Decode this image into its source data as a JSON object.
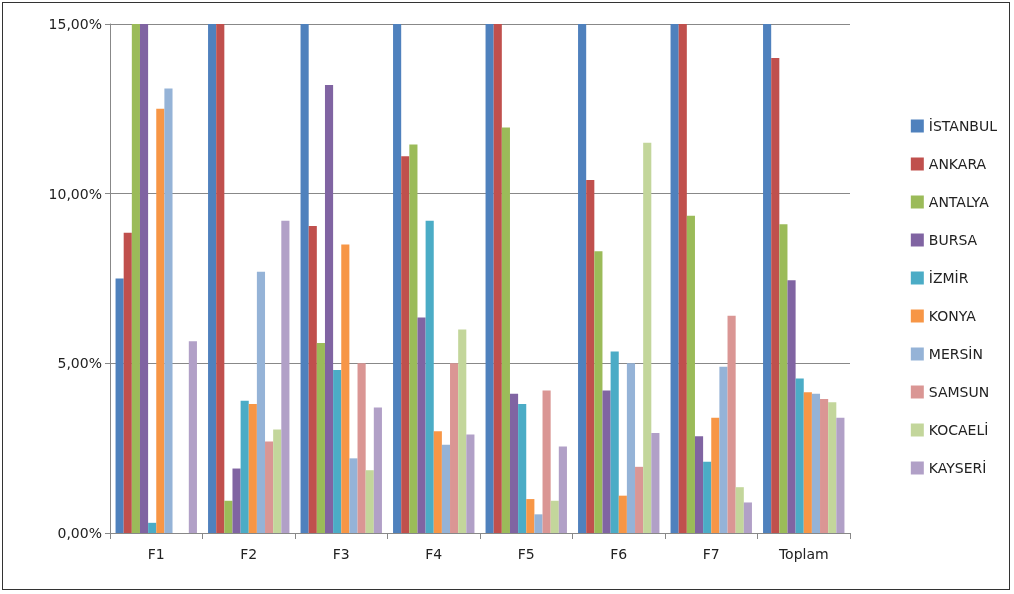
{
  "chart_data": {
    "type": "bar",
    "categories": [
      "F1",
      "F2",
      "F3",
      "F4",
      "F5",
      "F6",
      "F7",
      "Toplam"
    ],
    "series": [
      {
        "name": "İSTANBUL",
        "color": "#4f81bd",
        "values": [
          7.5,
          15,
          15,
          15,
          15,
          15,
          15,
          15
        ]
      },
      {
        "name": "ANKARA",
        "color": "#c0504d",
        "values": [
          8.85,
          15,
          9.05,
          11.1,
          15,
          10.4,
          15,
          14.0
        ]
      },
      {
        "name": "ANTALYA",
        "color": "#9bbb59",
        "values": [
          15,
          0.95,
          5.6,
          11.45,
          11.95,
          8.3,
          9.35,
          9.1
        ]
      },
      {
        "name": "BURSA",
        "color": "#8064a2",
        "values": [
          15,
          1.9,
          13.2,
          6.35,
          4.1,
          4.2,
          2.85,
          7.45
        ]
      },
      {
        "name": "İZMİR",
        "color": "#4bacc6",
        "values": [
          0.3,
          3.9,
          4.8,
          9.2,
          3.8,
          5.35,
          2.1,
          4.55
        ]
      },
      {
        "name": "KONYA",
        "color": "#f79646",
        "values": [
          12.5,
          3.8,
          8.5,
          3.0,
          1.0,
          1.1,
          3.4,
          4.15
        ]
      },
      {
        "name": "MERSİN",
        "color": "#95b3d7",
        "values": [
          13.1,
          7.7,
          2.2,
          2.6,
          0.55,
          5.0,
          4.9,
          4.1
        ]
      },
      {
        "name": "SAMSUN",
        "color": "#da9694",
        "values": [
          null,
          2.7,
          5.0,
          5.0,
          4.2,
          1.95,
          6.4,
          3.95
        ]
      },
      {
        "name": "KOCAELİ",
        "color": "#c3d69b",
        "values": [
          null,
          3.05,
          1.85,
          6.0,
          0.95,
          11.5,
          1.35,
          3.85
        ]
      },
      {
        "name": "KAYSERİ",
        "color": "#b1a0c7",
        "values": [
          5.65,
          9.2,
          3.7,
          2.9,
          2.55,
          2.95,
          0.9,
          3.4
        ]
      }
    ],
    "ylim": [
      0,
      15
    ],
    "yticks": [
      {
        "value": 0,
        "label": "0,00%"
      },
      {
        "value": 5,
        "label": "5,00%"
      },
      {
        "value": 10,
        "label": "10,00%"
      },
      {
        "value": 15,
        "label": "15,00%"
      }
    ],
    "grid": "y",
    "legend": "right"
  }
}
